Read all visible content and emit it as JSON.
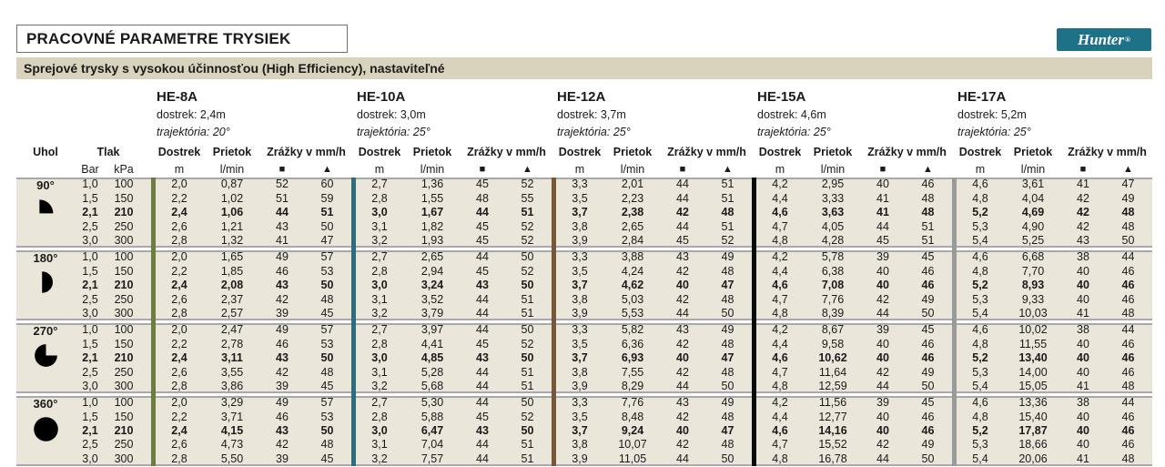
{
  "title": "PRACOVNÉ PARAMETRE TRYSIEK",
  "subtitle": "Sprejové trysky s vysokou účinnosťou (High Efficiency), nastaviteľné",
  "logo": {
    "text": "Hunter",
    "registered": "®",
    "bg_color": "#1e7287"
  },
  "colors": {
    "row_band": "#ebe6da",
    "subtitle_bg": "#d9d3bd",
    "grid_line": "#a9a9a9"
  },
  "table": {
    "angle_header": "Uhol",
    "pressure_header": "Tlak",
    "pressure_units": [
      "Bar",
      "kPa"
    ],
    "col_headers": {
      "dostrek": "Dostrek",
      "prietok": "Prietok",
      "zrazky": "Zrážky v mm/h"
    },
    "col_units": {
      "dostrek": "m",
      "prietok": "l/min",
      "square": "■",
      "triangle": "▲"
    },
    "bold_row_index": 2,
    "nozzles": [
      {
        "name": "HE-8A",
        "dostrek": "dostrek: 2,4m",
        "trajektoria": "trajektória: 20°",
        "bar_color": "#6d7d40"
      },
      {
        "name": "HE-10A",
        "dostrek": "dostrek: 3,0m",
        "trajektoria": "trajektória: 25°",
        "bar_color": "#2d6e7e"
      },
      {
        "name": "HE-12A",
        "dostrek": "dostrek: 3,7m",
        "trajektoria": "trajektória: 25°",
        "bar_color": "#775836"
      },
      {
        "name": "HE-15A",
        "dostrek": "dostrek: 4,6m",
        "trajektoria": "trajektória: 25°",
        "bar_color": "#0a0a0a"
      },
      {
        "name": "HE-17A",
        "dostrek": "dostrek: 5,2m",
        "trajektoria": "trajektória: 25°",
        "bar_color": "#9a9a9a"
      }
    ],
    "groups": [
      {
        "angle": "90°",
        "icon": "quarter-circle-icon",
        "rows": [
          {
            "bar": "1,0",
            "kpa": "100",
            "values": [
              [
                "2,0",
                "0,87",
                "52",
                "60"
              ],
              [
                "2,7",
                "1,36",
                "45",
                "52"
              ],
              [
                "3,3",
                "2,01",
                "44",
                "51"
              ],
              [
                "4,2",
                "2,95",
                "40",
                "46"
              ],
              [
                "4,6",
                "3,61",
                "41",
                "47"
              ]
            ]
          },
          {
            "bar": "1,5",
            "kpa": "150",
            "values": [
              [
                "2,2",
                "1,02",
                "51",
                "59"
              ],
              [
                "2,8",
                "1,55",
                "48",
                "55"
              ],
              [
                "3,5",
                "2,23",
                "44",
                "51"
              ],
              [
                "4,4",
                "3,33",
                "41",
                "48"
              ],
              [
                "4,8",
                "4,04",
                "42",
                "49"
              ]
            ]
          },
          {
            "bar": "2,1",
            "kpa": "210",
            "values": [
              [
                "2,4",
                "1,06",
                "44",
                "51"
              ],
              [
                "3,0",
                "1,67",
                "44",
                "51"
              ],
              [
                "3,7",
                "2,38",
                "42",
                "48"
              ],
              [
                "4,6",
                "3,63",
                "41",
                "48"
              ],
              [
                "5,2",
                "4,69",
                "42",
                "48"
              ]
            ]
          },
          {
            "bar": "2,5",
            "kpa": "250",
            "values": [
              [
                "2,6",
                "1,21",
                "43",
                "50"
              ],
              [
                "3,1",
                "1,82",
                "45",
                "52"
              ],
              [
                "3,8",
                "2,65",
                "44",
                "51"
              ],
              [
                "4,7",
                "4,05",
                "44",
                "51"
              ],
              [
                "5,3",
                "4,90",
                "42",
                "48"
              ]
            ]
          },
          {
            "bar": "3,0",
            "kpa": "300",
            "values": [
              [
                "2,8",
                "1,32",
                "41",
                "47"
              ],
              [
                "3,2",
                "1,93",
                "45",
                "52"
              ],
              [
                "3,9",
                "2,84",
                "45",
                "52"
              ],
              [
                "4,8",
                "4,28",
                "45",
                "51"
              ],
              [
                "5,4",
                "5,25",
                "43",
                "50"
              ]
            ]
          }
        ]
      },
      {
        "angle": "180°",
        "icon": "half-circle-icon",
        "rows": [
          {
            "bar": "1,0",
            "kpa": "100",
            "values": [
              [
                "2,0",
                "1,65",
                "49",
                "57"
              ],
              [
                "2,7",
                "2,65",
                "44",
                "50"
              ],
              [
                "3,3",
                "3,88",
                "43",
                "49"
              ],
              [
                "4,2",
                "5,78",
                "39",
                "45"
              ],
              [
                "4,6",
                "6,68",
                "38",
                "44"
              ]
            ]
          },
          {
            "bar": "1,5",
            "kpa": "150",
            "values": [
              [
                "2,2",
                "1,85",
                "46",
                "53"
              ],
              [
                "2,8",
                "2,94",
                "45",
                "52"
              ],
              [
                "3,5",
                "4,24",
                "42",
                "48"
              ],
              [
                "4,4",
                "6,38",
                "40",
                "46"
              ],
              [
                "4,8",
                "7,70",
                "40",
                "46"
              ]
            ]
          },
          {
            "bar": "2,1",
            "kpa": "210",
            "values": [
              [
                "2,4",
                "2,08",
                "43",
                "50"
              ],
              [
                "3,0",
                "3,24",
                "43",
                "50"
              ],
              [
                "3,7",
                "4,62",
                "40",
                "47"
              ],
              [
                "4,6",
                "7,08",
                "40",
                "46"
              ],
              [
                "5,2",
                "8,93",
                "40",
                "46"
              ]
            ]
          },
          {
            "bar": "2,5",
            "kpa": "250",
            "values": [
              [
                "2,6",
                "2,37",
                "42",
                "48"
              ],
              [
                "3,1",
                "3,52",
                "44",
                "51"
              ],
              [
                "3,8",
                "5,03",
                "42",
                "48"
              ],
              [
                "4,7",
                "7,76",
                "42",
                "49"
              ],
              [
                "5,3",
                "9,33",
                "40",
                "46"
              ]
            ]
          },
          {
            "bar": "3,0",
            "kpa": "300",
            "values": [
              [
                "2,8",
                "2,57",
                "39",
                "45"
              ],
              [
                "3,2",
                "3,79",
                "44",
                "51"
              ],
              [
                "3,9",
                "5,53",
                "44",
                "50"
              ],
              [
                "4,8",
                "8,39",
                "44",
                "50"
              ],
              [
                "5,4",
                "10,03",
                "41",
                "48"
              ]
            ]
          }
        ]
      },
      {
        "angle": "270°",
        "icon": "three-quarter-circle-icon",
        "rows": [
          {
            "bar": "1,0",
            "kpa": "100",
            "values": [
              [
                "2,0",
                "2,47",
                "49",
                "57"
              ],
              [
                "2,7",
                "3,97",
                "44",
                "50"
              ],
              [
                "3,3",
                "5,82",
                "43",
                "49"
              ],
              [
                "4,2",
                "8,67",
                "39",
                "45"
              ],
              [
                "4,6",
                "10,02",
                "38",
                "44"
              ]
            ]
          },
          {
            "bar": "1,5",
            "kpa": "150",
            "values": [
              [
                "2,2",
                "2,78",
                "46",
                "53"
              ],
              [
                "2,8",
                "4,41",
                "45",
                "52"
              ],
              [
                "3,5",
                "6,36",
                "42",
                "48"
              ],
              [
                "4,4",
                "9,58",
                "40",
                "46"
              ],
              [
                "4,8",
                "11,55",
                "40",
                "46"
              ]
            ]
          },
          {
            "bar": "2,1",
            "kpa": "210",
            "values": [
              [
                "2,4",
                "3,11",
                "43",
                "50"
              ],
              [
                "3,0",
                "4,85",
                "43",
                "50"
              ],
              [
                "3,7",
                "6,93",
                "40",
                "47"
              ],
              [
                "4,6",
                "10,62",
                "40",
                "46"
              ],
              [
                "5,2",
                "13,40",
                "40",
                "46"
              ]
            ]
          },
          {
            "bar": "2,5",
            "kpa": "250",
            "values": [
              [
                "2,6",
                "3,55",
                "42",
                "48"
              ],
              [
                "3,1",
                "5,28",
                "44",
                "51"
              ],
              [
                "3,8",
                "7,55",
                "42",
                "48"
              ],
              [
                "4,7",
                "11,64",
                "42",
                "49"
              ],
              [
                "5,3",
                "14,00",
                "40",
                "46"
              ]
            ]
          },
          {
            "bar": "3,0",
            "kpa": "300",
            "values": [
              [
                "2,8",
                "3,86",
                "39",
                "45"
              ],
              [
                "3,2",
                "5,68",
                "44",
                "51"
              ],
              [
                "3,9",
                "8,29",
                "44",
                "50"
              ],
              [
                "4,8",
                "12,59",
                "44",
                "50"
              ],
              [
                "5,4",
                "15,05",
                "41",
                "48"
              ]
            ]
          }
        ]
      },
      {
        "angle": "360°",
        "icon": "full-circle-icon",
        "rows": [
          {
            "bar": "1,0",
            "kpa": "100",
            "values": [
              [
                "2,0",
                "3,29",
                "49",
                "57"
              ],
              [
                "2,7",
                "5,30",
                "44",
                "50"
              ],
              [
                "3,3",
                "7,76",
                "43",
                "49"
              ],
              [
                "4,2",
                "11,56",
                "39",
                "45"
              ],
              [
                "4,6",
                "13,36",
                "38",
                "44"
              ]
            ]
          },
          {
            "bar": "1,5",
            "kpa": "150",
            "values": [
              [
                "2,2",
                "3,71",
                "46",
                "53"
              ],
              [
                "2,8",
                "5,88",
                "45",
                "52"
              ],
              [
                "3,5",
                "8,48",
                "42",
                "48"
              ],
              [
                "4,4",
                "12,77",
                "40",
                "46"
              ],
              [
                "4,8",
                "15,40",
                "40",
                "46"
              ]
            ]
          },
          {
            "bar": "2,1",
            "kpa": "210",
            "values": [
              [
                "2,4",
                "4,15",
                "43",
                "50"
              ],
              [
                "3,0",
                "6,47",
                "43",
                "50"
              ],
              [
                "3,7",
                "9,24",
                "40",
                "47"
              ],
              [
                "4,6",
                "14,16",
                "40",
                "46"
              ],
              [
                "5,2",
                "17,87",
                "40",
                "46"
              ]
            ]
          },
          {
            "bar": "2,5",
            "kpa": "250",
            "values": [
              [
                "2,6",
                "4,73",
                "42",
                "48"
              ],
              [
                "3,1",
                "7,04",
                "44",
                "51"
              ],
              [
                "3,8",
                "10,07",
                "42",
                "48"
              ],
              [
                "4,7",
                "15,52",
                "42",
                "49"
              ],
              [
                "5,3",
                "18,66",
                "40",
                "46"
              ]
            ]
          },
          {
            "bar": "3,0",
            "kpa": "300",
            "values": [
              [
                "2,8",
                "5,50",
                "39",
                "45"
              ],
              [
                "3,2",
                "7,57",
                "44",
                "51"
              ],
              [
                "3,9",
                "11,05",
                "44",
                "50"
              ],
              [
                "4,8",
                "16,78",
                "44",
                "50"
              ],
              [
                "5,4",
                "20,06",
                "41",
                "48"
              ]
            ]
          }
        ]
      }
    ]
  }
}
